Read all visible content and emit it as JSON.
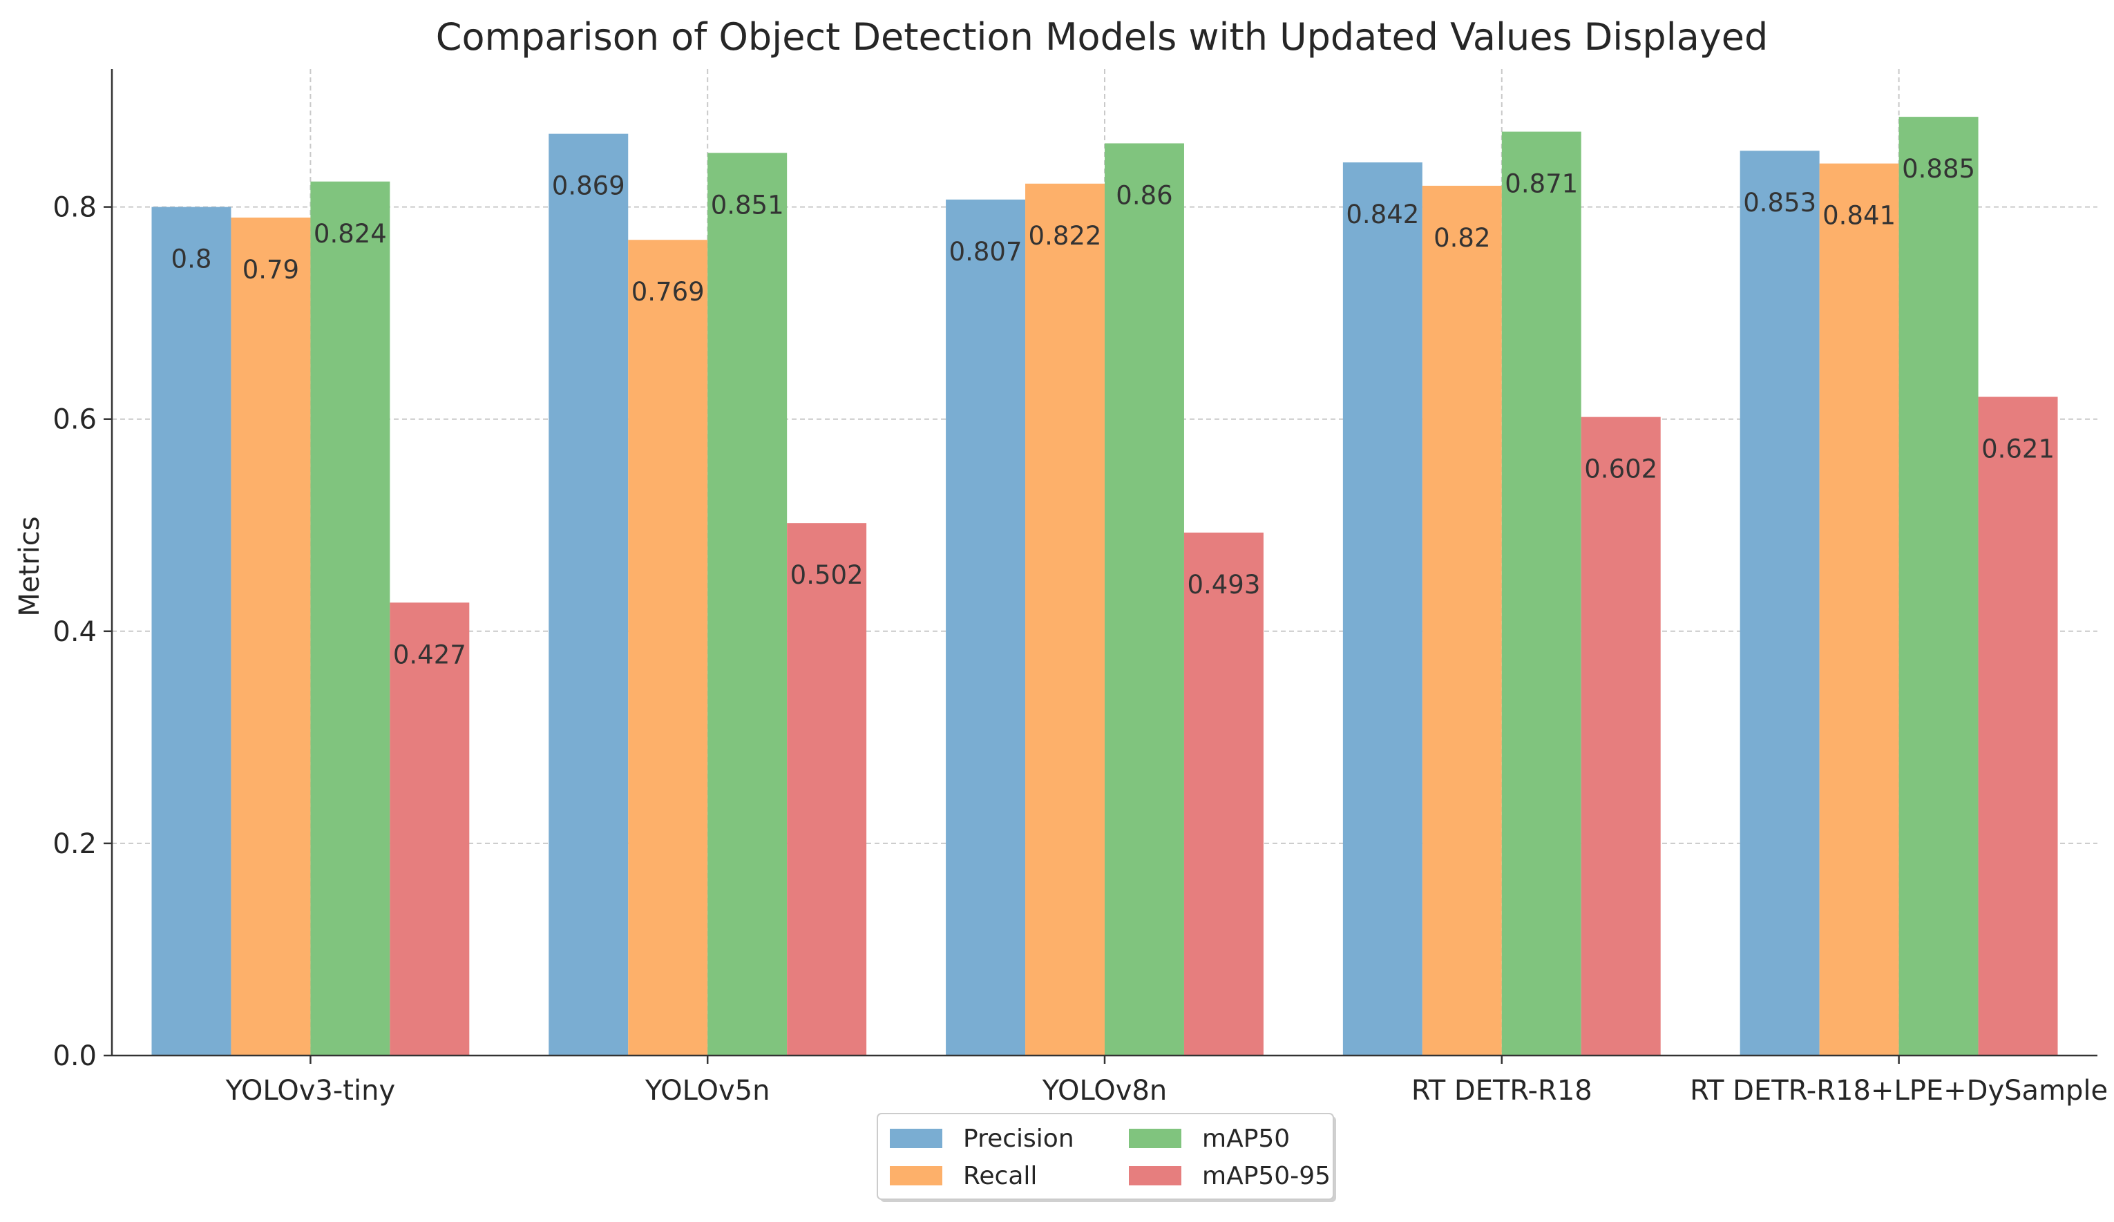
{
  "chart_data": {
    "type": "bar",
    "title": "Comparison of Object Detection Models with Updated Values Displayed",
    "xlabel": "",
    "ylabel": "Metrics",
    "ylim": [
      0,
      0.93
    ],
    "yticks": [
      0.0,
      0.2,
      0.4,
      0.6,
      0.8
    ],
    "ytick_labels": [
      "0.0",
      "0.2",
      "0.4",
      "0.6",
      "0.8"
    ],
    "grid": true,
    "legend_position": "bottom-center",
    "categories": [
      "YOLOv3-tiny",
      "YOLOv5n",
      "YOLOv8n",
      "RT DETR-R18",
      "RT DETR-R18+LPE+DySample"
    ],
    "series": [
      {
        "name": "Precision",
        "color": "#7aadd2",
        "values": [
          0.8,
          0.869,
          0.807,
          0.842,
          0.853
        ],
        "labels": [
          "0.8",
          "0.869",
          "0.807",
          "0.842",
          "0.853"
        ]
      },
      {
        "name": "Recall",
        "color": "#fdb06a",
        "values": [
          0.79,
          0.769,
          0.822,
          0.82,
          0.841
        ],
        "labels": [
          "0.79",
          "0.769",
          "0.822",
          "0.82",
          "0.841"
        ]
      },
      {
        "name": "mAP50",
        "color": "#80c47e",
        "values": [
          0.824,
          0.851,
          0.86,
          0.871,
          0.885
        ],
        "labels": [
          "0.824",
          "0.851",
          "0.86",
          "0.871",
          "0.885"
        ]
      },
      {
        "name": "mAP50-95",
        "color": "#e67e7e",
        "values": [
          0.427,
          0.502,
          0.493,
          0.602,
          0.621
        ],
        "labels": [
          "0.427",
          "0.502",
          "0.493",
          "0.602",
          "0.621"
        ]
      }
    ]
  }
}
